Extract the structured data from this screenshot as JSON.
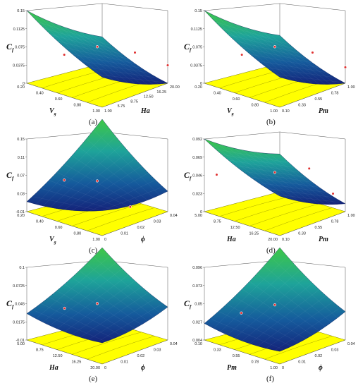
{
  "chart_data": [
    {
      "type": "surface",
      "panel_label": "(a)",
      "zlabel": "C",
      "zlabel_sub": "f",
      "xlabel": "V",
      "xlabel_sub": "g",
      "ylabel": "Ha",
      "z_ticks": [
        "0.15",
        "0.1125",
        "0.075",
        "0.0375",
        "0"
      ],
      "x_ticks": [
        "0.20",
        "0.40",
        "0.60",
        "0.80",
        "1.00"
      ],
      "y_ticks": [
        "1.00",
        "5.75",
        "8.75",
        "12.50",
        "16.25",
        "20.00"
      ],
      "surface_corners": {
        "back_left": 0.15,
        "front_left": 0.062,
        "back_right": 0.055,
        "front_right": 0.0
      },
      "design_points": [
        {
          "x": 0.6,
          "y": 10.5,
          "z": 0.075
        },
        {
          "x": 1.0,
          "y": 10.5,
          "z": 0.09
        },
        {
          "x": 1.0,
          "y": 20.0,
          "z": 0.03
        },
        {
          "x": 0.25,
          "y": 10.5,
          "z": 0.03
        }
      ]
    },
    {
      "type": "surface",
      "panel_label": "(b)",
      "zlabel": "C",
      "zlabel_sub": "f",
      "xlabel": "V",
      "xlabel_sub": "g",
      "ylabel": "Pm",
      "z_ticks": [
        "0.15",
        "0.1125",
        "0.075",
        "0.0375",
        "0"
      ],
      "x_ticks": [
        "0.20",
        "0.40",
        "0.60",
        "0.80",
        "1.00"
      ],
      "y_ticks": [
        "0.10",
        "0.33",
        "0.55",
        "0.78",
        "1.00"
      ],
      "surface_corners": {
        "back_left": 0.15,
        "front_left": 0.062,
        "back_right": 0.058,
        "front_right": 0.0
      },
      "design_points": [
        {
          "x": 0.6,
          "y": 0.55,
          "z": 0.075
        },
        {
          "x": 1.0,
          "y": 0.55,
          "z": 0.09
        },
        {
          "x": 1.0,
          "y": 1.0,
          "z": 0.025
        },
        {
          "x": 0.25,
          "y": 0.55,
          "z": 0.03
        }
      ]
    },
    {
      "type": "surface",
      "panel_label": "(c)",
      "zlabel": "C",
      "zlabel_sub": "f",
      "xlabel": "V",
      "xlabel_sub": "g",
      "ylabel": "ϕ",
      "z_ticks": [
        "0.15",
        "0.11",
        "0.07",
        "0.03",
        "-0.01"
      ],
      "x_ticks": [
        "0.20",
        "0.40",
        "0.60",
        "0.80",
        "1.00"
      ],
      "y_ticks": [
        "0",
        "0.01",
        "0.02",
        "0.03",
        "0.04"
      ],
      "surface_corners": {
        "back_left": 0.012,
        "front_left": 0.045,
        "back_right": 0.15,
        "front_right": 0.035
      },
      "design_points": [
        {
          "x": 0.6,
          "y": 0.02,
          "z": 0.055
        },
        {
          "x": 0.25,
          "y": 0.02,
          "z": 0.03
        },
        {
          "x": 0.95,
          "y": 0.02,
          "z": 0.015
        }
      ]
    },
    {
      "type": "surface",
      "panel_label": "(d)",
      "zlabel": "C",
      "zlabel_sub": "f",
      "xlabel": "Ha",
      "ylabel": "Pm",
      "z_ticks": [
        "0.092",
        "0.069",
        "0.046",
        "0.023",
        "0"
      ],
      "x_ticks": [
        "5.00",
        "8.75",
        "12.50",
        "16.25",
        "20.00"
      ],
      "y_ticks": [
        "0.10",
        "0.33",
        "0.55",
        "0.78",
        "1.00"
      ],
      "surface_corners": {
        "back_left": 0.092,
        "front_left": 0.05,
        "back_right": 0.048,
        "front_right": 0.01
      },
      "design_points": [
        {
          "x": 12.5,
          "y": 0.55,
          "z": 0.05
        },
        {
          "x": 16.0,
          "y": 0.78,
          "z": 0.055
        },
        {
          "x": 19.0,
          "y": 0.9,
          "z": 0.02
        },
        {
          "x": 6.0,
          "y": 0.2,
          "z": 0.045
        }
      ]
    },
    {
      "type": "surface",
      "panel_label": "(e)",
      "zlabel": "C",
      "zlabel_sub": "f",
      "xlabel": "Ha",
      "ylabel": "ϕ",
      "z_ticks": [
        "0.1",
        "0.0725",
        "0.045",
        "0.0175",
        "-0.01"
      ],
      "x_ticks": [
        "5.00",
        "8.75",
        "12.50",
        "16.25",
        "20.00"
      ],
      "y_ticks": [
        "0",
        "0.01",
        "0.02",
        "0.03",
        "0.04"
      ],
      "surface_corners": {
        "back_left": 0.03,
        "front_left": 0.022,
        "back_right": 0.1,
        "front_right": 0.04
      },
      "design_points": [
        {
          "x": 12.5,
          "y": 0.02,
          "z": 0.045
        },
        {
          "x": 6.0,
          "y": 0.02,
          "z": 0.018
        }
      ]
    },
    {
      "type": "surface",
      "panel_label": "(f)",
      "zlabel": "C",
      "zlabel_sub": "f",
      "xlabel": "Pm",
      "ylabel": "ϕ",
      "z_ticks": [
        "0.096",
        "0.073",
        "0.05",
        "0.027",
        "0.004"
      ],
      "x_ticks": [
        "0.10",
        "0.33",
        "0.55",
        "0.78",
        "1.00"
      ],
      "y_ticks": [
        "0",
        "0.01",
        "0.02",
        "0.03",
        "0.04"
      ],
      "surface_corners": {
        "back_left": 0.025,
        "front_left": 0.02,
        "back_right": 0.096,
        "front_right": 0.04
      },
      "design_points": [
        {
          "x": 0.55,
          "y": 0.02,
          "z": 0.048
        },
        {
          "x": 0.15,
          "y": 0.02,
          "z": 0.02
        }
      ]
    }
  ]
}
